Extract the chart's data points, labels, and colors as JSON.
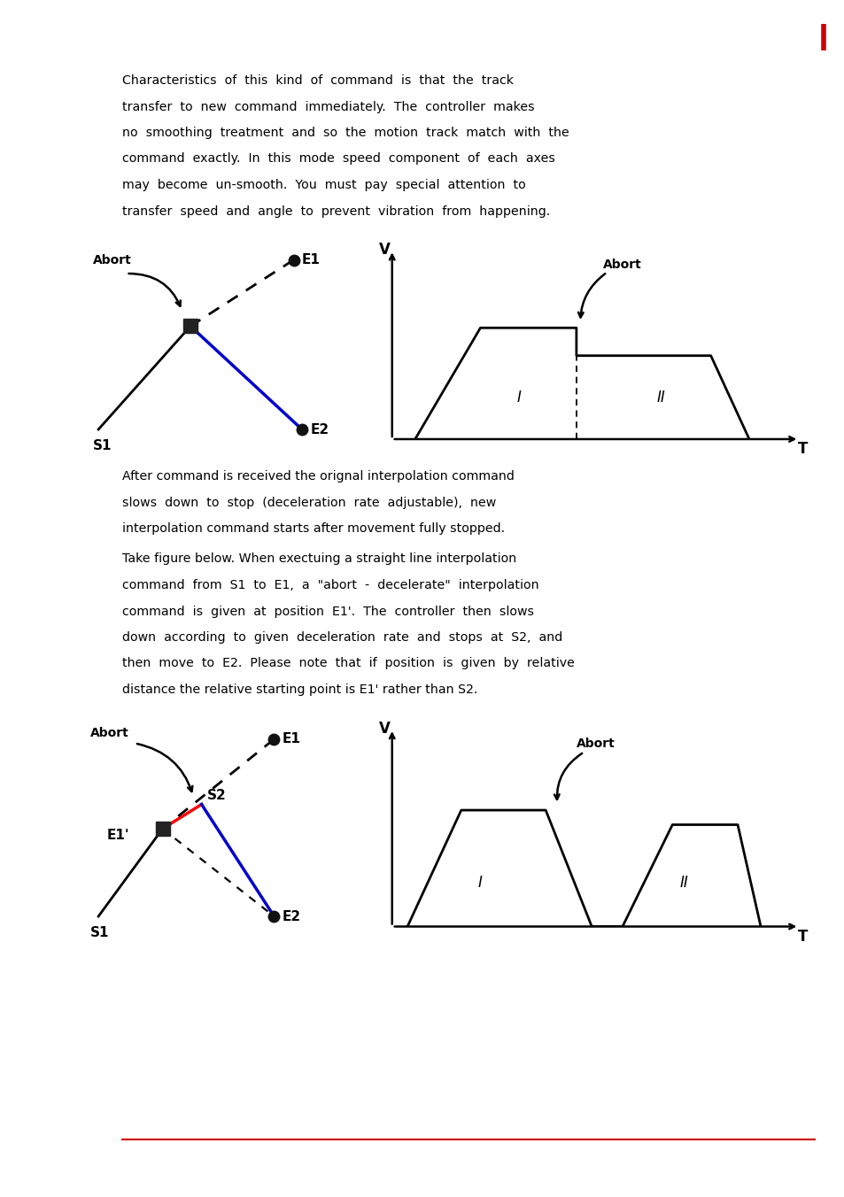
{
  "page_width": 9.54,
  "page_height": 13.52,
  "background_color": "#ffffff",
  "red_bar_color": "#cc0000",
  "footer_line_color": "#cc0000",
  "para1_lines": [
    "Characteristics  of  this  kind  of  command  is  that  the  track",
    "transfer  to  new  command  immediately.  The  controller  makes",
    "no  smoothing  treatment  and  so  the  motion  track  match  with  the",
    "command  exactly.  In  this  mode  speed  component  of  each  axes",
    "may  become  un-smooth.  You  must  pay  special  attention  to",
    "transfer  speed  and  angle  to  prevent  vibration  from  happening."
  ],
  "para2_lines": [
    "After command is received the orignal interpolation command",
    "slows  down  to  stop  (deceleration  rate  adjustable),  new",
    "interpolation command starts after movement fully stopped."
  ],
  "para3_lines": [
    "Take figure below. When exectuing a straight line interpolation",
    "command  from  S1  to  E1,  a  \"abort  -  decelerate\"  interpolation",
    "command  is  given  at  position  E1'.  The  controller  then  slows",
    "down  according  to  given  deceleration  rate  and  stops  at  S2,  and",
    "then  move  to  E2.  Please  note  that  if  position  is  given  by  relative",
    "distance the relative starting point is E1' rather than S2."
  ]
}
